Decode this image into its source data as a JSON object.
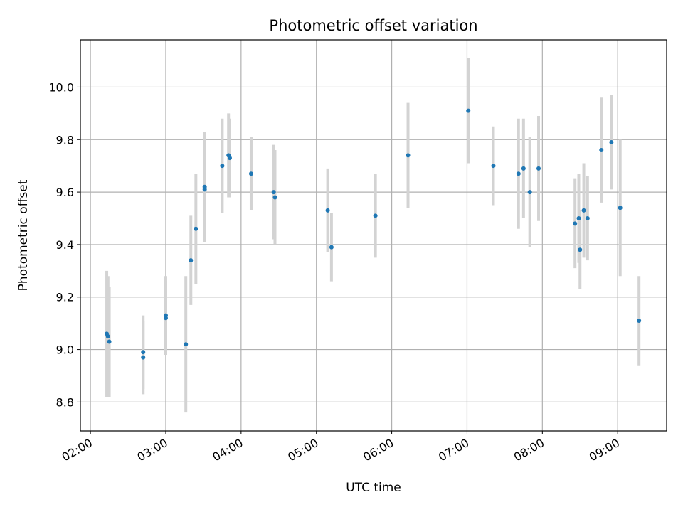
{
  "chart_data": {
    "type": "scatter",
    "title": "Photometric offset variation",
    "xlabel": "UTC time",
    "ylabel": "Photometric offset",
    "x_axis_format": "HH:MM",
    "xlim": [
      "01:52",
      "09:39"
    ],
    "ylim": [
      8.69,
      10.18
    ],
    "x_ticks": [
      "02:00",
      "03:00",
      "04:00",
      "05:00",
      "06:00",
      "07:00",
      "08:00",
      "09:00"
    ],
    "y_ticks": [
      8.8,
      9.0,
      9.2,
      9.4,
      9.6,
      9.8,
      10.0
    ],
    "y_tick_labels": [
      "8.8",
      "9.0",
      "9.2",
      "9.4",
      "9.6",
      "9.8",
      "10.0"
    ],
    "grid": true,
    "colors": {
      "marker": "#1f77b4",
      "errorbar": "#d3d3d3",
      "grid": "#b0b0b0"
    },
    "series": [
      {
        "points": [
          {
            "x": "02:13",
            "y": 9.06,
            "err": 0.24
          },
          {
            "x": "02:14",
            "y": 9.05,
            "err": 0.23
          },
          {
            "x": "02:15",
            "y": 9.03,
            "err": 0.21
          },
          {
            "x": "02:42",
            "y": 8.99,
            "err": 0.14
          },
          {
            "x": "02:42",
            "y": 8.97,
            "err": 0.14
          },
          {
            "x": "03:00",
            "y": 9.13,
            "err": 0.15
          },
          {
            "x": "03:00",
            "y": 9.12,
            "err": 0.14
          },
          {
            "x": "03:16",
            "y": 9.02,
            "err": 0.26
          },
          {
            "x": "03:20",
            "y": 9.34,
            "err": 0.17
          },
          {
            "x": "03:24",
            "y": 9.46,
            "err": 0.21
          },
          {
            "x": "03:31",
            "y": 9.62,
            "err": 0.21
          },
          {
            "x": "03:31",
            "y": 9.61,
            "err": 0.2
          },
          {
            "x": "03:45",
            "y": 9.7,
            "err": 0.18
          },
          {
            "x": "03:50",
            "y": 9.74,
            "err": 0.16
          },
          {
            "x": "03:51",
            "y": 9.73,
            "err": 0.15
          },
          {
            "x": "04:08",
            "y": 9.67,
            "err": 0.14
          },
          {
            "x": "04:26",
            "y": 9.6,
            "err": 0.18
          },
          {
            "x": "04:27",
            "y": 9.58,
            "err": 0.18
          },
          {
            "x": "05:09",
            "y": 9.53,
            "err": 0.16
          },
          {
            "x": "05:12",
            "y": 9.39,
            "err": 0.13
          },
          {
            "x": "05:47",
            "y": 9.51,
            "err": 0.16
          },
          {
            "x": "06:13",
            "y": 9.74,
            "err": 0.2
          },
          {
            "x": "07:01",
            "y": 9.91,
            "err": 0.2
          },
          {
            "x": "07:21",
            "y": 9.7,
            "err": 0.15
          },
          {
            "x": "07:41",
            "y": 9.67,
            "err": 0.21
          },
          {
            "x": "07:45",
            "y": 9.69,
            "err": 0.19
          },
          {
            "x": "07:50",
            "y": 9.6,
            "err": 0.21
          },
          {
            "x": "07:57",
            "y": 9.69,
            "err": 0.2
          },
          {
            "x": "08:26",
            "y": 9.48,
            "err": 0.17
          },
          {
            "x": "08:29",
            "y": 9.5,
            "err": 0.17
          },
          {
            "x": "08:30",
            "y": 9.38,
            "err": 0.15
          },
          {
            "x": "08:33",
            "y": 9.53,
            "err": 0.18
          },
          {
            "x": "08:36",
            "y": 9.5,
            "err": 0.16
          },
          {
            "x": "08:47",
            "y": 9.76,
            "err": 0.2
          },
          {
            "x": "08:55",
            "y": 9.79,
            "err": 0.18
          },
          {
            "x": "09:02",
            "y": 9.54,
            "err": 0.26
          },
          {
            "x": "09:17",
            "y": 9.11,
            "err": 0.17
          }
        ]
      }
    ]
  }
}
